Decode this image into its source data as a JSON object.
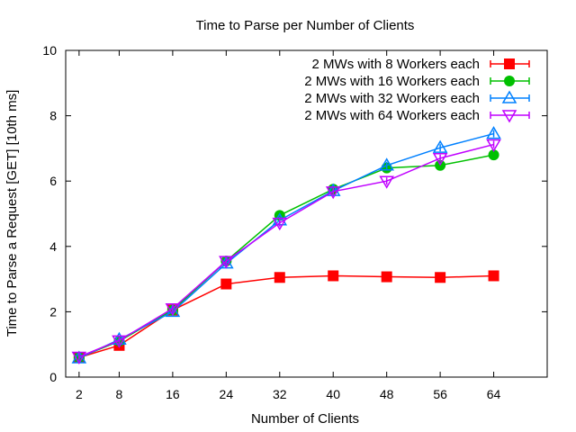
{
  "chart_data": {
    "type": "line",
    "title": "Time to Parse per Number of Clients",
    "xlabel": "Number of Clients",
    "ylabel": "Time to Parse a Request [GET] [10th ms]",
    "categories": [
      "2",
      "8",
      "16",
      "24",
      "32",
      "40",
      "48",
      "56",
      "64"
    ],
    "x": [
      2,
      8,
      16,
      24,
      32,
      40,
      48,
      56,
      64
    ],
    "xlim": [
      0,
      72
    ],
    "ylim": [
      0,
      10
    ],
    "yticks": [
      "0",
      "2",
      "4",
      "6",
      "8",
      "10"
    ],
    "grid": false,
    "legend_position": "top-right",
    "series": [
      {
        "name": "2 MWs with 8 Workers each",
        "color": "#ff0000",
        "marker": "square",
        "values": [
          0.6,
          0.97,
          2.05,
          2.85,
          3.05,
          3.1,
          3.07,
          3.05,
          3.1
        ]
      },
      {
        "name": "2 MWs with 16 Workers each",
        "color": "#00c000",
        "marker": "circle",
        "values": [
          0.6,
          1.1,
          2.05,
          3.55,
          4.95,
          5.75,
          6.4,
          6.48,
          6.8
        ]
      },
      {
        "name": "2 MWs with 32 Workers each",
        "color": "#0080ff",
        "marker": "triangle-up",
        "values": [
          0.58,
          1.15,
          2.0,
          3.48,
          4.8,
          5.7,
          6.48,
          7.02,
          7.45
        ]
      },
      {
        "name": "2 MWs with 64 Workers each",
        "color": "#c000ff",
        "marker": "triangle-down",
        "values": [
          0.62,
          1.12,
          2.1,
          3.55,
          4.72,
          5.68,
          6.0,
          6.7,
          7.12
        ]
      }
    ]
  }
}
